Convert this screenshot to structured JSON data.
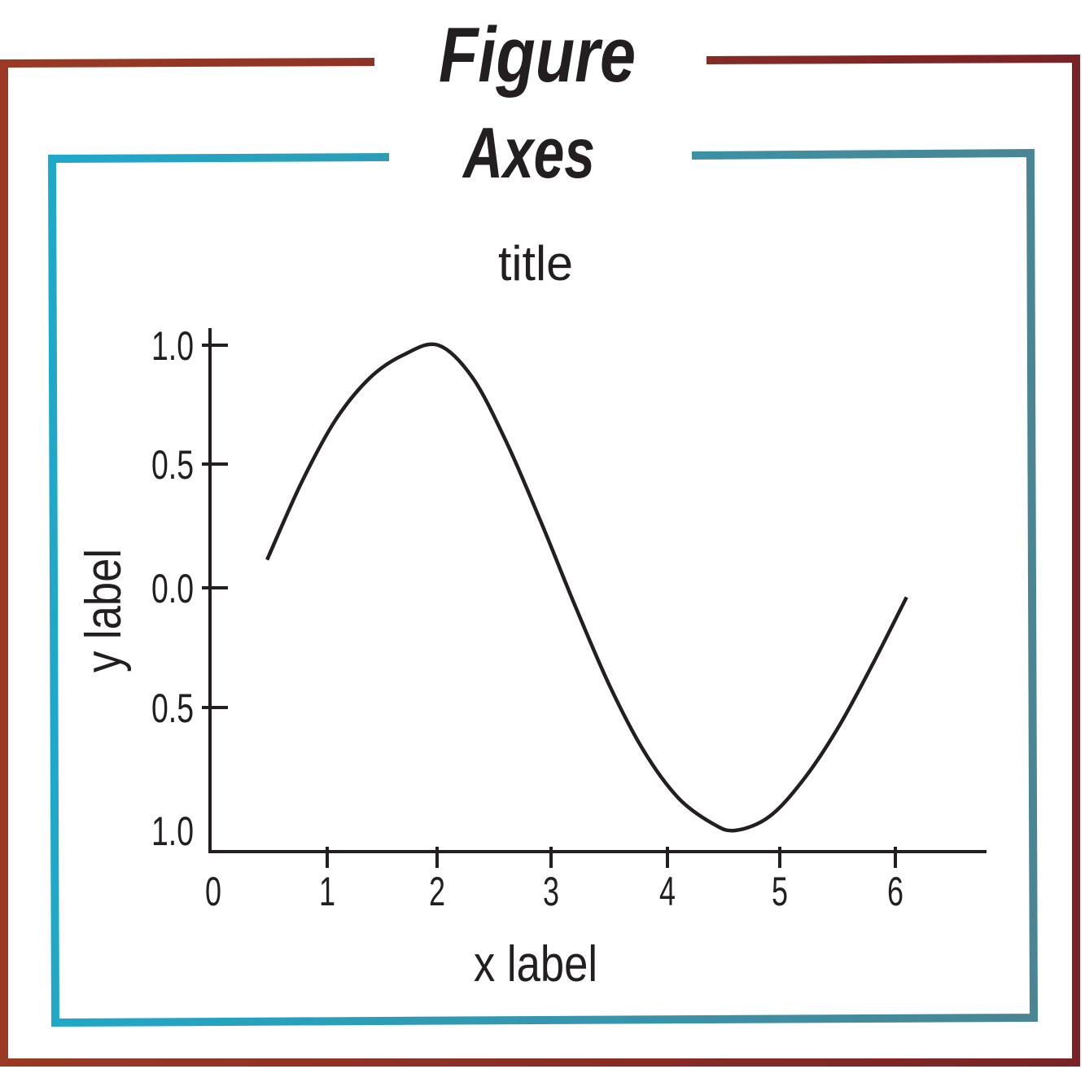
{
  "figure": {
    "label": "Figure",
    "frame_color_start": "#9a3a24",
    "frame_color_end": "#7a2326"
  },
  "axes": {
    "label": "Axes",
    "frame_color_start": "#1fa8c8",
    "frame_color_end": "#4a8594"
  },
  "chart_data": {
    "type": "line",
    "title": "title",
    "xlabel": "x label",
    "ylabel": "y label",
    "x_ticks": [
      "0",
      "1",
      "2",
      "3",
      "4",
      "5",
      "6"
    ],
    "y_ticks": [
      "1.0",
      "0.5",
      "0.0",
      "0.5",
      "1.0"
    ],
    "series": [
      {
        "x": [
          0.5,
          0.8,
          1.1,
          1.4,
          1.7,
          2.0,
          2.3,
          2.6,
          2.9,
          3.2,
          3.5,
          3.8,
          4.1,
          4.4,
          4.6,
          4.9,
          5.2,
          5.5,
          5.8,
          6.1
        ],
        "y": [
          0.12,
          0.45,
          0.72,
          0.9,
          1.0,
          1.04,
          0.9,
          0.62,
          0.28,
          -0.08,
          -0.42,
          -0.7,
          -0.9,
          -1.01,
          -1.04,
          -0.98,
          -0.82,
          -0.6,
          -0.33,
          -0.04
        ]
      }
    ],
    "xlim": [
      0,
      6.8
    ],
    "ylim": [
      -1.04,
      1.04
    ],
    "grid": false,
    "line_color": "#231f20"
  }
}
